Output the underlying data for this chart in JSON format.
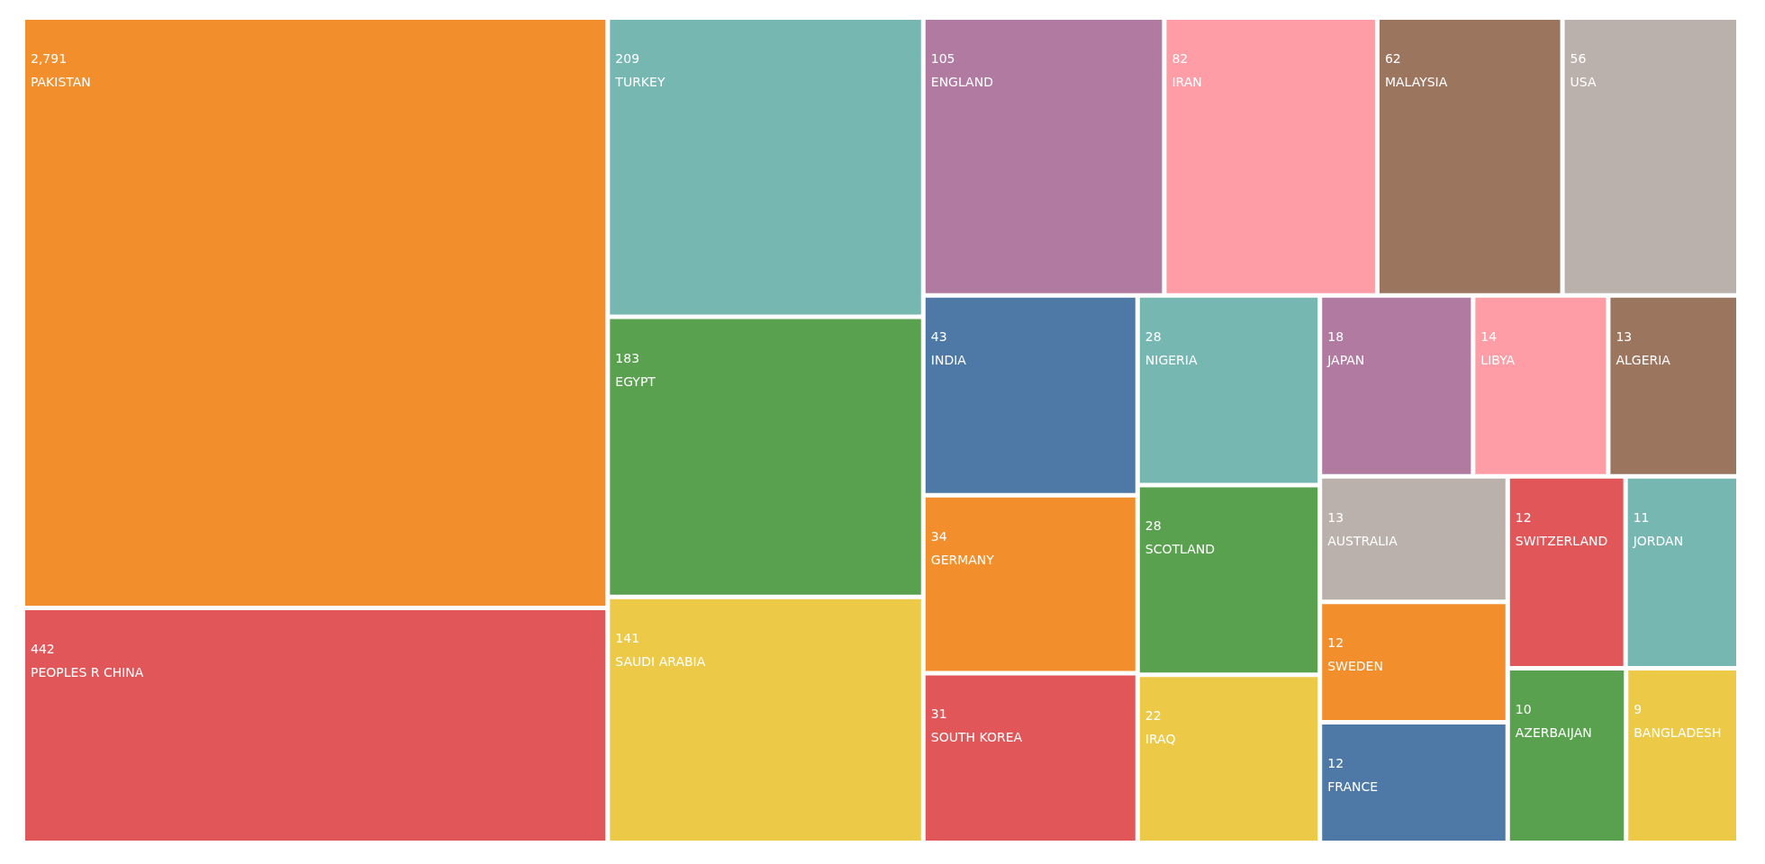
{
  "chart_data": {
    "type": "other",
    "categories": [
      "PAKISTAN",
      "PEOPLES R CHINA",
      "TURKEY",
      "EGYPT",
      "SAUDI ARABIA",
      "ENGLAND",
      "IRAN",
      "MALAYSIA",
      "USA",
      "INDIA",
      "GERMANY",
      "SOUTH KOREA",
      "NIGERIA",
      "SCOTLAND",
      "IRAQ",
      "JAPAN",
      "LIBYA",
      "ALGERIA",
      "AUSTRALIA",
      "SWEDEN",
      "FRANCE",
      "SWITZERLAND",
      "JORDAN",
      "AZERBAIJAN",
      "BANGLADESH"
    ],
    "values": [
      2791,
      442,
      209,
      183,
      141,
      105,
      82,
      62,
      56,
      43,
      34,
      31,
      28,
      28,
      22,
      18,
      14,
      13,
      13,
      12,
      12,
      12,
      11,
      10,
      9
    ],
    "value_labels": [
      "2,791",
      "442",
      "209",
      "183",
      "141",
      "105",
      "82",
      "62",
      "56",
      "43",
      "34",
      "31",
      "28",
      "28",
      "22",
      "18",
      "14",
      "13",
      "13",
      "12",
      "12",
      "12",
      "11",
      "10",
      "9"
    ],
    "colors": [
      "#f28e2b",
      "#e15759",
      "#76b7b2",
      "#59a14f",
      "#edc948",
      "#b07aa1",
      "#ff9da7",
      "#9c755f",
      "#bab0ac",
      "#4e79a7",
      "#f28e2b",
      "#e15759",
      "#76b7b2",
      "#59a14f",
      "#edc948",
      "#b07aa1",
      "#ff9da7",
      "#9c755f",
      "#bab0ac",
      "#f28e2b",
      "#4e79a7",
      "#e15759",
      "#76b7b2",
      "#59a14f",
      "#edc948"
    ]
  }
}
